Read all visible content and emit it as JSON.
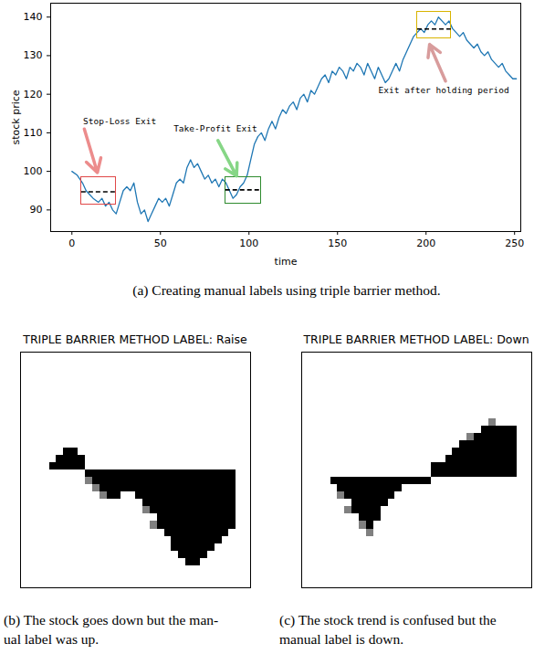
{
  "chart_data": {
    "type": "line",
    "caption": "(a) Creating manual labels using triple barrier method.",
    "xlabel": "time",
    "ylabel": "stock price",
    "color": "#1f77b4",
    "xlim": [
      -12,
      253.5
    ],
    "ylim": [
      84.4,
      143.6
    ],
    "xticks": [
      0,
      50,
      100,
      150,
      200,
      250
    ],
    "yticks": [
      90,
      100,
      110,
      120,
      130,
      140
    ],
    "x": [
      0,
      3,
      6,
      8,
      10,
      12,
      15,
      17,
      19,
      21,
      23,
      25,
      27,
      29,
      31,
      33,
      35,
      37,
      39,
      41,
      43,
      45,
      47,
      49,
      51,
      53,
      55,
      57,
      59,
      61,
      63,
      65,
      67,
      69,
      71,
      73,
      75,
      77,
      79,
      81,
      83,
      85,
      87,
      89,
      91,
      93,
      95,
      97,
      99,
      101,
      103,
      105,
      107,
      109,
      111,
      113,
      115,
      117,
      119,
      121,
      123,
      125,
      127,
      129,
      131,
      133,
      135,
      137,
      139,
      141,
      143,
      145,
      147,
      149,
      151,
      153,
      155,
      157,
      159,
      161,
      163,
      165,
      167,
      169,
      171,
      173,
      175,
      177,
      179,
      181,
      183,
      185,
      187,
      189,
      191,
      193,
      195,
      197,
      199,
      201,
      203,
      205,
      207,
      209,
      211,
      213,
      215,
      217,
      219,
      221,
      223,
      225,
      227,
      229,
      231,
      233,
      235,
      237,
      239,
      241,
      243,
      245,
      247,
      249,
      251
    ],
    "values": [
      100,
      99,
      97,
      95,
      94,
      93,
      92,
      93,
      91,
      92,
      90,
      89,
      92,
      95,
      96,
      95,
      97,
      92,
      89,
      90,
      87,
      89,
      91,
      93,
      92,
      93,
      91,
      94,
      97,
      98,
      97,
      101,
      103,
      101,
      102,
      100,
      98,
      99,
      97,
      98,
      96,
      98,
      97,
      95,
      93,
      94,
      96,
      97,
      99,
      103,
      107,
      109,
      110,
      108,
      111,
      113,
      111,
      114,
      116,
      115,
      117,
      118,
      116,
      119,
      120,
      118,
      121,
      120,
      122,
      124,
      125,
      123,
      126,
      125,
      127,
      126,
      124,
      127,
      126,
      128,
      127,
      125,
      128,
      126,
      124,
      127,
      125,
      123,
      124,
      126,
      128,
      126,
      129,
      131,
      133,
      135,
      136,
      137,
      136,
      138,
      139,
      138,
      140,
      139,
      138,
      139,
      137,
      136,
      135,
      136,
      134,
      133,
      132,
      133,
      131,
      130,
      131,
      129,
      128,
      127,
      128,
      126,
      125,
      124,
      124
    ],
    "annotations": [
      {
        "text": "Stop-Loss Exit",
        "x": 27,
        "y": 113,
        "arrow_from": [
          7,
          111
        ],
        "arrow_to": [
          14.4,
          99.7
        ],
        "box_x": [
          5.2,
          24.7
        ],
        "box_y": [
          91.4,
          98.5
        ],
        "level": 94.7,
        "colors": [
          "#e04848",
          "#ec8c8c"
        ]
      },
      {
        "text": "Take-Profit Exit",
        "x": 81,
        "y": 111,
        "arrow_from": [
          82.5,
          108
        ],
        "arrow_to": [
          93,
          98.8
        ],
        "box_x": [
          86.6,
          106.7
        ],
        "box_y": [
          91.7,
          98.5
        ],
        "level": 95.2,
        "colors": [
          "#2e8b2e",
          "#86d686"
        ]
      },
      {
        "text": "Exit after holding period",
        "x": 210,
        "y": 121,
        "arrow_from": [
          211,
          123.4
        ],
        "arrow_to": [
          202,
          132.9
        ],
        "box_x": [
          195,
          214
        ],
        "box_y": [
          134.5,
          141.4
        ],
        "level": 136.9,
        "colors": [
          "#d8b400",
          "#d89c9c"
        ]
      }
    ]
  },
  "panels": [
    {
      "title": "TRIPLE BARRIER METHOD LABEL: Raise",
      "caption": [
        "(b) The stock goes down but the man-",
        "ual label was up."
      ],
      "grid_size": 32,
      "value_range": [
        0,
        1
      ],
      "cells": [
        [
          13,
          6,
          7,
          1
        ],
        [
          14,
          5,
          8,
          1
        ],
        [
          15,
          4,
          8,
          1
        ],
        [
          16,
          9,
          29,
          1
        ],
        [
          17,
          9,
          9,
          0.5
        ],
        [
          17,
          10,
          29,
          1
        ],
        [
          18,
          10,
          10,
          0.5
        ],
        [
          18,
          11,
          29,
          1
        ],
        [
          19,
          11,
          11,
          0.5
        ],
        [
          19,
          12,
          13,
          1
        ],
        [
          19,
          16,
          29,
          1
        ],
        [
          20,
          17,
          29,
          1
        ],
        [
          21,
          17,
          17,
          0.5
        ],
        [
          21,
          18,
          29,
          1
        ],
        [
          22,
          19,
          29,
          1
        ],
        [
          23,
          18,
          18,
          0.5
        ],
        [
          23,
          19,
          29,
          1
        ],
        [
          24,
          20,
          28,
          1
        ],
        [
          25,
          21,
          27,
          1
        ],
        [
          26,
          21,
          26,
          1
        ],
        [
          27,
          22,
          25,
          1
        ],
        [
          28,
          23,
          24,
          1
        ]
      ]
    },
    {
      "title": "TRIPLE BARRIER METHOD LABEL: Down",
      "caption": [
        "(c) The stock trend is confused but the",
        "manual label is down."
      ],
      "grid_size": 32,
      "value_range": [
        0,
        1
      ],
      "cells": [
        [
          9,
          26,
          26,
          0.5
        ],
        [
          10,
          25,
          29,
          1
        ],
        [
          11,
          23,
          23,
          0.5
        ],
        [
          11,
          24,
          29,
          1
        ],
        [
          12,
          22,
          29,
          1
        ],
        [
          13,
          21,
          29,
          1
        ],
        [
          14,
          20,
          29,
          1
        ],
        [
          15,
          18,
          29,
          1
        ],
        [
          16,
          18,
          29,
          1
        ],
        [
          17,
          4,
          17,
          1
        ],
        [
          18,
          5,
          13,
          1
        ],
        [
          19,
          5,
          5,
          0.5
        ],
        [
          19,
          6,
          12,
          1
        ],
        [
          20,
          7,
          11,
          1
        ],
        [
          21,
          6,
          6,
          0.5
        ],
        [
          21,
          7,
          10,
          1
        ],
        [
          22,
          8,
          10,
          1
        ],
        [
          23,
          8,
          8,
          0.5
        ],
        [
          23,
          9,
          9,
          1
        ],
        [
          24,
          9,
          9,
          0.5
        ]
      ]
    }
  ]
}
